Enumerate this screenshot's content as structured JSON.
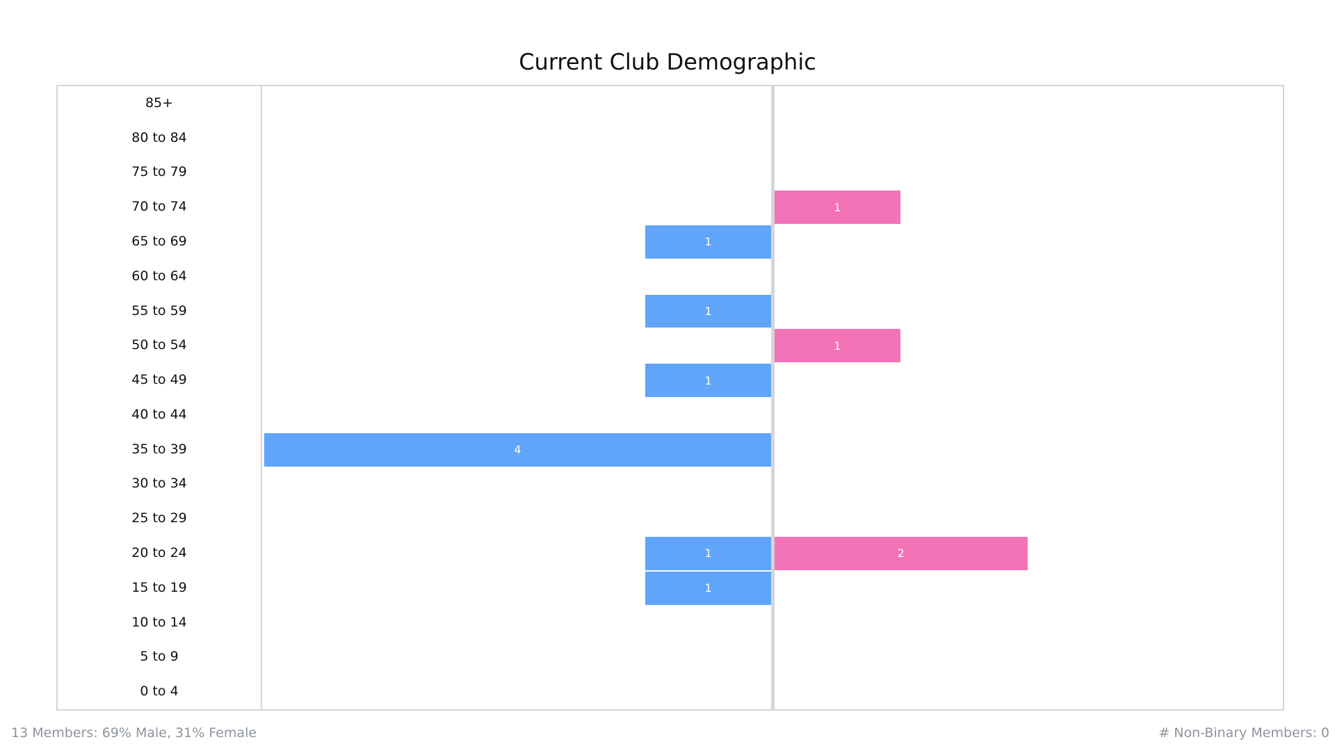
{
  "chart_data": {
    "type": "bar",
    "title": "Current Club Demographic",
    "orientation": "horizontal-butterfly",
    "categories": [
      "85+",
      "80 to 84",
      "75 to 79",
      "70 to 74",
      "65 to 69",
      "60 to 64",
      "55 to 59",
      "50 to 54",
      "45 to 49",
      "40 to 44",
      "35 to 39",
      "30 to 34",
      "25 to 29",
      "20 to 24",
      "15 to 19",
      "10 to 14",
      "5 to 9",
      "0 to 4"
    ],
    "series": [
      {
        "side": "left",
        "color": "#60a5fa",
        "values": [
          0,
          0,
          0,
          0,
          1,
          0,
          1,
          0,
          1,
          0,
          4,
          0,
          0,
          1,
          1,
          0,
          0,
          0
        ]
      },
      {
        "side": "right",
        "color": "#f472b6",
        "values": [
          0,
          0,
          0,
          1,
          0,
          0,
          0,
          1,
          0,
          0,
          0,
          0,
          0,
          2,
          0,
          0,
          0,
          0
        ]
      }
    ],
    "xlim": [
      -4,
      4
    ],
    "grid": false
  },
  "footer": {
    "summary": "13 Members: 69% Male, 31% Female",
    "non_binary": "# Non-Binary Members: 0"
  },
  "colors": {
    "male": "#60a5fa",
    "female": "#f472b6",
    "axis": "#d4d6dc"
  }
}
